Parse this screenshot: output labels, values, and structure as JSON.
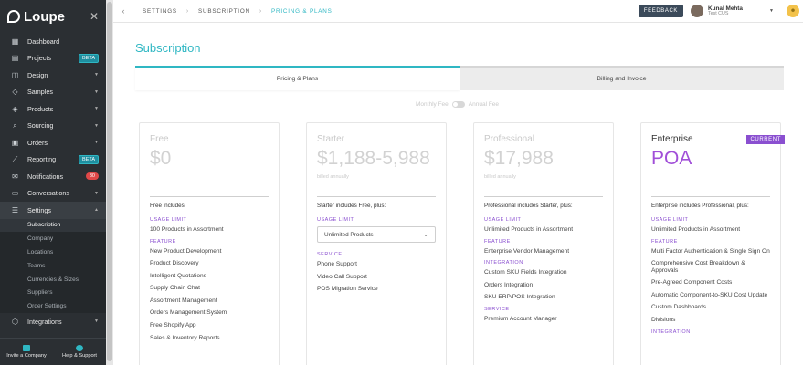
{
  "brand": {
    "name": "Loupe"
  },
  "sidebar": {
    "items": [
      {
        "label": "Dashboard"
      },
      {
        "label": "Projects",
        "badge": "BETA"
      },
      {
        "label": "Design"
      },
      {
        "label": "Samples"
      },
      {
        "label": "Products"
      },
      {
        "label": "Sourcing"
      },
      {
        "label": "Orders"
      },
      {
        "label": "Reporting",
        "badge": "BETA"
      },
      {
        "label": "Notifications",
        "count": "30"
      },
      {
        "label": "Conversations"
      },
      {
        "label": "Settings"
      },
      {
        "label": "Integrations"
      }
    ],
    "settings_sub": [
      "Subscription",
      "Company",
      "Locations",
      "Teams",
      "Currencies & Sizes",
      "Suppliers",
      "Order Settings"
    ],
    "bottom": {
      "invite": "Invite a Company",
      "help": "Help & Support"
    }
  },
  "topbar": {
    "breadcrumbs": [
      "SETTINGS",
      "SUBSCRIPTION",
      "PRICING & PLANS"
    ],
    "feedback": "FEEDBACK",
    "user_name": "Kunal Mehta",
    "user_sub": "Test CUS"
  },
  "main": {
    "title": "Subscription",
    "tabs": [
      "Pricing & Plans",
      "Billing and Invoice"
    ],
    "toggle": {
      "left": "Monthly Fee",
      "right": "Annual Fee"
    }
  },
  "plans": [
    {
      "name": "Free",
      "price": "$0",
      "billed": "",
      "includes": "Free includes:",
      "sections": [
        {
          "title": "USAGE LIMIT",
          "items": [
            "100 Products in Assortment"
          ]
        },
        {
          "title": "FEATURE",
          "items": [
            "New Product Development",
            "Product Discovery",
            "Intelligent Quotations",
            "Supply Chain Chat",
            "Assortment Management",
            "Orders Management System",
            "Free Shopify App",
            "Sales & Inventory Reports"
          ]
        }
      ]
    },
    {
      "name": "Starter",
      "price": "$1,188-5,988",
      "billed": "billed annually",
      "includes": "Starter includes Free, plus:",
      "sections": [
        {
          "title": "USAGE LIMIT",
          "select": "Unlimited Products"
        },
        {
          "title": "SERVICE",
          "items": [
            "Phone Support",
            "Video Call Support",
            "POS Migration Service"
          ]
        }
      ]
    },
    {
      "name": "Professional",
      "price": "$17,988",
      "billed": "billed annually",
      "includes": "Professional includes Starter, plus:",
      "sections": [
        {
          "title": "USAGE LIMIT",
          "items": [
            "Unlimited Products in Assortment"
          ]
        },
        {
          "title": "FEATURE",
          "items": [
            "Enterprise Vendor Management"
          ]
        },
        {
          "title": "INTEGRATION",
          "items": [
            "Custom SKU Fields Integration",
            "Orders Integration",
            "SKU ERP/POS Integration"
          ]
        },
        {
          "title": "SERVICE",
          "items": [
            "Premium Account Manager"
          ]
        }
      ]
    },
    {
      "name": "Enterprise",
      "price": "POA",
      "billed": "",
      "current": "CURRENT",
      "includes": "Enterprise includes Professional, plus:",
      "sections": [
        {
          "title": "USAGE LIMIT",
          "items": [
            "Unlimited Products in Assortment"
          ]
        },
        {
          "title": "FEATURE",
          "items": [
            "Multi Factor Authentication & Single Sign On",
            "Comprehensive Cost Breakdown & Approvals",
            "Pre-Agreed Component Costs",
            "Automatic Component-to-SKU Cost Update",
            "Custom Dashboards",
            "Divisions"
          ]
        },
        {
          "title": "INTEGRATION",
          "items": []
        }
      ]
    }
  ],
  "colors": {
    "accent": "#2fb7c3",
    "purple": "#8a4fd0",
    "sidebar": "#2b2f33"
  }
}
